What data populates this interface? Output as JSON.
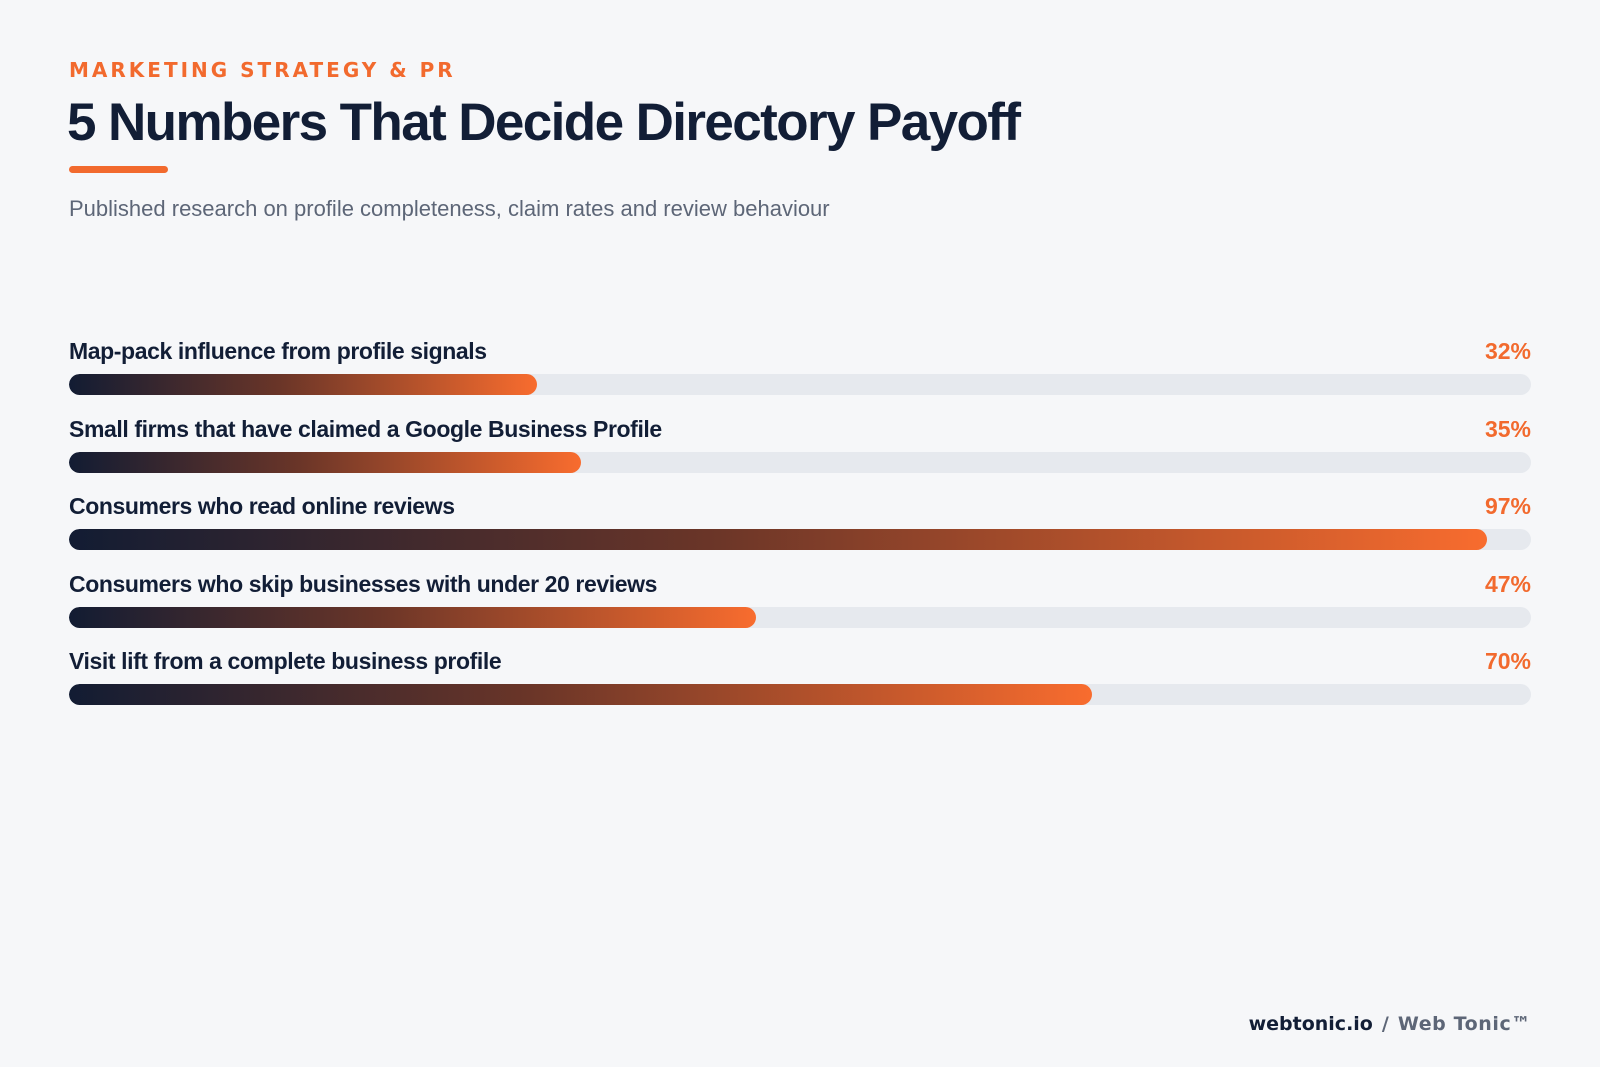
{
  "header": {
    "eyebrow": "MARKETING STRATEGY & PR",
    "title": "5 Numbers That Decide Directory Payoff",
    "subtitle": "Published research on profile completeness, claim rates and review behaviour"
  },
  "chart_data": {
    "type": "bar",
    "orientation": "horizontal",
    "xlim": [
      0,
      100
    ],
    "unit": "%",
    "grid": false,
    "categories": [
      "Map-pack influence from profile signals",
      "Small firms that have claimed a Google Business Profile",
      "Consumers who read online reviews",
      "Consumers who skip businesses with under 20 reviews",
      "Visit lift from a complete business profile"
    ],
    "values": [
      32,
      35,
      97,
      47,
      70
    ],
    "value_labels": [
      "32%",
      "35%",
      "97%",
      "47%",
      "70%"
    ],
    "colors": {
      "gradient_start": "#121c33",
      "gradient_end": "#f86c2e",
      "track": "#e6e9ee",
      "value_text": "#f26a2e",
      "label_text": "#121e36"
    }
  },
  "footer": {
    "site": "webtonic.io",
    "separator": "/",
    "brand": "Web Tonic™"
  }
}
